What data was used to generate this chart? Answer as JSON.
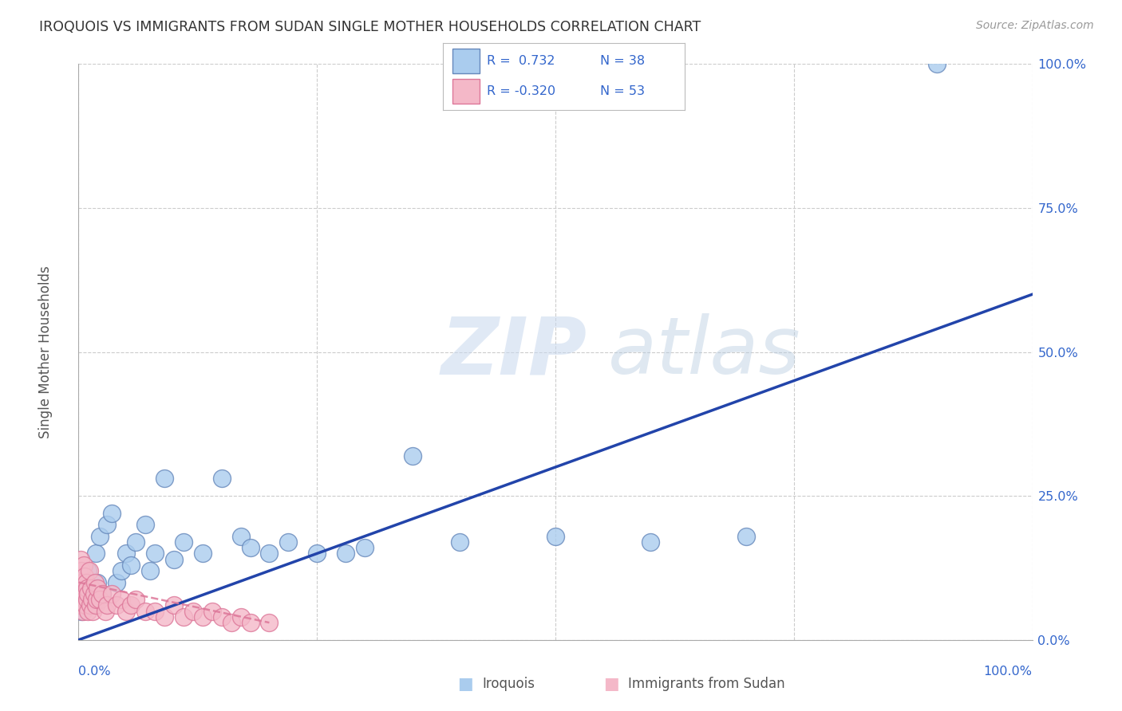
{
  "title": "IROQUOIS VS IMMIGRANTS FROM SUDAN SINGLE MOTHER HOUSEHOLDS CORRELATION CHART",
  "source": "Source: ZipAtlas.com",
  "ylabel": "Single Mother Households",
  "watermark_zip": "ZIP",
  "watermark_atlas": "atlas",
  "legend_r1": "R =  0.732",
  "legend_n1": "N = 38",
  "legend_r2": "R = -0.320",
  "legend_n2": "N = 53",
  "ytick_labels": [
    "0.0%",
    "25.0%",
    "50.0%",
    "75.0%",
    "100.0%"
  ],
  "ytick_values": [
    0,
    25,
    50,
    75,
    100
  ],
  "xtick_labels": [
    "0.0%",
    "25.0%",
    "50.0%",
    "75.0%",
    "100.0%"
  ],
  "xtick_values": [
    0,
    25,
    50,
    75,
    100
  ],
  "iroquois_color": "#aaccee",
  "iroquois_edge": "#6688bb",
  "iroquois_line": "#2244aa",
  "sudan_color": "#f4b8c8",
  "sudan_edge": "#dd7799",
  "sudan_line": "#dd7799",
  "iroquois_x": [
    0.3,
    0.5,
    0.8,
    1.0,
    1.2,
    1.5,
    1.8,
    2.0,
    2.2,
    2.5,
    3.0,
    3.5,
    4.0,
    4.5,
    5.0,
    5.5,
    6.0,
    7.0,
    7.5,
    8.0,
    9.0,
    10.0,
    11.0,
    13.0,
    15.0,
    17.0,
    18.0,
    20.0,
    22.0,
    25.0,
    28.0,
    30.0,
    35.0,
    40.0,
    50.0,
    60.0,
    70.0,
    90.0
  ],
  "iroquois_y": [
    5.0,
    7.0,
    8.0,
    12.0,
    7.0,
    6.0,
    15.0,
    10.0,
    18.0,
    8.0,
    20.0,
    22.0,
    10.0,
    12.0,
    15.0,
    13.0,
    17.0,
    20.0,
    12.0,
    15.0,
    28.0,
    14.0,
    17.0,
    15.0,
    28.0,
    18.0,
    16.0,
    15.0,
    17.0,
    15.0,
    15.0,
    16.0,
    32.0,
    17.0,
    18.0,
    17.0,
    18.0,
    100.0
  ],
  "sudan_x": [
    0.05,
    0.1,
    0.15,
    0.2,
    0.25,
    0.3,
    0.35,
    0.4,
    0.45,
    0.5,
    0.55,
    0.6,
    0.65,
    0.7,
    0.75,
    0.8,
    0.85,
    0.9,
    0.95,
    1.0,
    1.1,
    1.2,
    1.3,
    1.4,
    1.5,
    1.6,
    1.7,
    1.8,
    1.9,
    2.0,
    2.2,
    2.5,
    2.8,
    3.0,
    3.5,
    4.0,
    4.5,
    5.0,
    5.5,
    6.0,
    7.0,
    8.0,
    9.0,
    10.0,
    11.0,
    12.0,
    13.0,
    14.0,
    15.0,
    16.0,
    17.0,
    18.0,
    20.0
  ],
  "sudan_y": [
    12.0,
    10.0,
    8.0,
    14.0,
    6.0,
    12.0,
    8.0,
    10.0,
    5.0,
    9.0,
    13.0,
    7.0,
    11.0,
    8.0,
    6.0,
    10.0,
    7.0,
    9.0,
    5.0,
    8.0,
    12.0,
    6.0,
    9.0,
    7.0,
    5.0,
    8.0,
    10.0,
    6.0,
    7.0,
    9.0,
    7.0,
    8.0,
    5.0,
    6.0,
    8.0,
    6.0,
    7.0,
    5.0,
    6.0,
    7.0,
    5.0,
    5.0,
    4.0,
    6.0,
    4.0,
    5.0,
    4.0,
    5.0,
    4.0,
    3.0,
    4.0,
    3.0,
    3.0
  ],
  "background_color": "#ffffff",
  "grid_color": "#cccccc",
  "title_color": "#333333",
  "tick_label_color": "#3366cc",
  "label_color": "#555555",
  "legend_text_color": "#3366cc"
}
